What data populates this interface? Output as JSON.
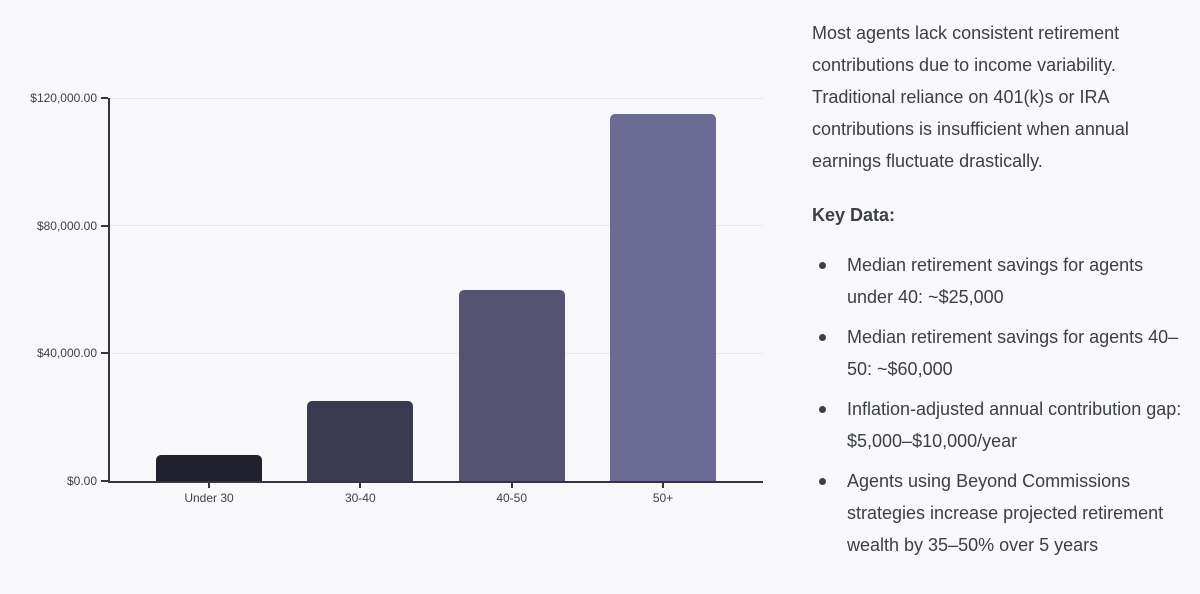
{
  "chart_data": {
    "type": "bar",
    "title": "",
    "xlabel": "",
    "ylabel": "",
    "categories": [
      "Under 30",
      "30-40",
      "40-50",
      "50+"
    ],
    "values": [
      8000,
      25000,
      60000,
      115000
    ],
    "bar_colors": [
      "#20202d",
      "#393950",
      "#545472",
      "#6b6b96"
    ],
    "ylim": [
      0,
      120000
    ],
    "y_ticks": [
      {
        "value": 0,
        "label": "$0.00"
      },
      {
        "value": 40000,
        "label": "$40,000.00"
      },
      {
        "value": 80000,
        "label": "$80,000.00"
      },
      {
        "value": 120000,
        "label": "$120,000.00"
      }
    ],
    "grid": true,
    "legend": false
  },
  "right_panel": {
    "intro": "Most agents lack consistent retirement contributions due to income variability. Traditional reliance on 401(k)s or IRA contributions is insufficient when annual earnings fluctuate drastically.",
    "key_data_title": "Key Data:",
    "key_data_items": [
      "Median retirement savings for agents under 40: ~$25,000",
      "Median retirement savings for agents 40–50: ~$60,000",
      "Inflation-adjusted annual contribution gap: $5,000–$10,000/year",
      "Agents using Beyond Commissions strategies increase projected retirement wealth by 35–50% over 5 years"
    ]
  },
  "colors": {
    "background": "#f8f8fb",
    "axis": "#35353f",
    "gridline": "#e7e7ea",
    "tick_label": "#424242",
    "body_text": "#3c4043"
  }
}
